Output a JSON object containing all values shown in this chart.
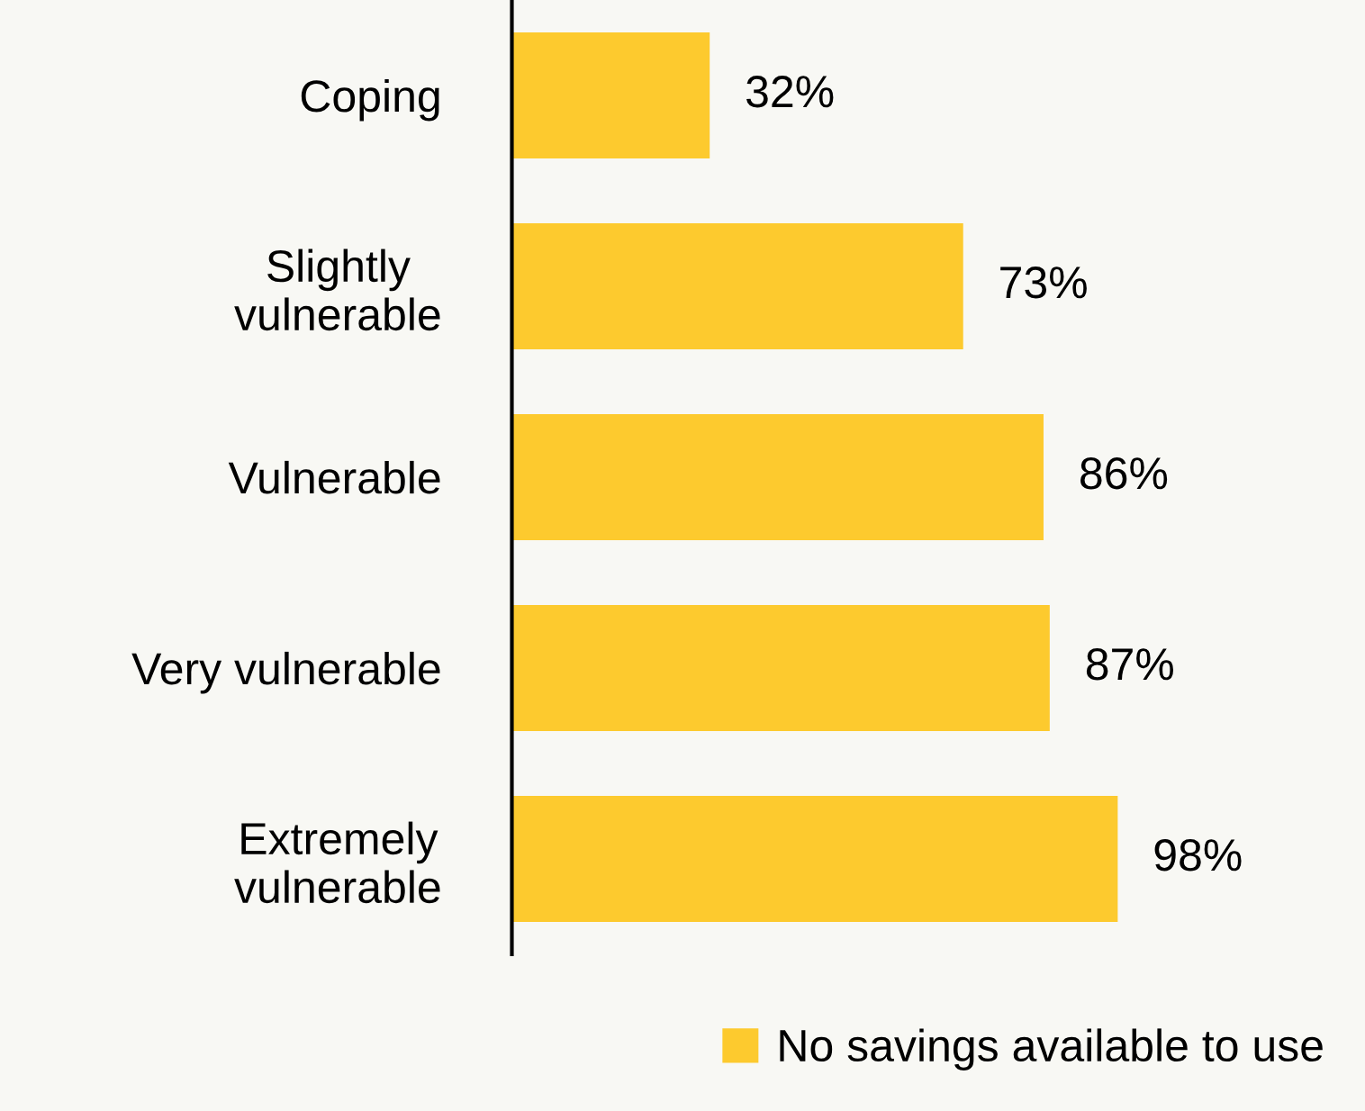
{
  "chart_data": {
    "type": "bar",
    "orientation": "horizontal",
    "categories": [
      "Coping",
      "Slightly\nvulnerable",
      "Vulnerable",
      "Very vulnerable",
      "Extremely\nvulnerable"
    ],
    "series": [
      {
        "name": "No savings available to use",
        "color": "#fdca2e",
        "values": [
          32,
          73,
          86,
          87,
          98
        ],
        "value_labels": [
          "32%",
          "73%",
          "86%",
          "87%",
          "98%"
        ]
      }
    ],
    "xlim": [
      0,
      138
    ],
    "tick_labels": "y",
    "legend": "bottom right",
    "grid": false
  }
}
